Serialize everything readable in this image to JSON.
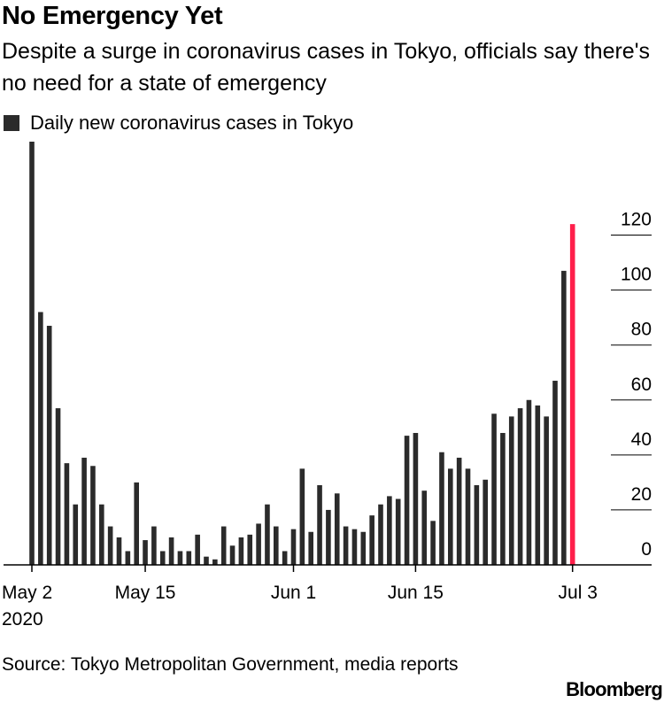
{
  "chart_data": {
    "type": "bar",
    "title": "No Emergency Yet",
    "subtitle": "Despite a surge in coronavirus cases in Tokyo, officials say there's no need for a state of emergency",
    "legend": [
      "Daily new coronavirus cases in Tokyo"
    ],
    "series": [
      {
        "name": "Daily new coronavirus cases in Tokyo",
        "values": [
          154,
          92,
          87,
          57,
          37,
          22,
          39,
          36,
          22,
          14,
          10,
          5,
          30,
          9,
          14,
          5,
          10,
          5,
          5,
          11,
          3,
          2,
          14,
          7,
          10,
          11,
          15,
          22,
          14,
          5,
          13,
          35,
          12,
          29,
          20,
          26,
          14,
          13,
          12,
          18,
          22,
          25,
          24,
          47,
          48,
          27,
          16,
          41,
          35,
          39,
          35,
          29,
          31,
          55,
          48,
          54,
          57,
          60,
          58,
          54,
          67,
          107,
          124
        ],
        "highlight_last": true
      }
    ],
    "x_start": "2020-05-02",
    "x_end": "2020-07-03",
    "x_ticks": [
      {
        "label": "May 2",
        "sublabel": "2020",
        "index": 0
      },
      {
        "label": "May 15",
        "index": 13
      },
      {
        "label": "Jun 1",
        "index": 30
      },
      {
        "label": "Jun 15",
        "index": 44
      },
      {
        "label": "Jul 3",
        "index": 62
      }
    ],
    "y_ticks": [
      0,
      20,
      40,
      60,
      80,
      100,
      120
    ],
    "ylim": [
      0,
      154
    ],
    "grid": false,
    "colors": {
      "bar": "#2b2b2b",
      "highlight": "#ff1f4b",
      "axis": "#000000"
    }
  },
  "source": "Source: Tokyo Metropolitan Government, media reports",
  "brand": "Bloomberg"
}
